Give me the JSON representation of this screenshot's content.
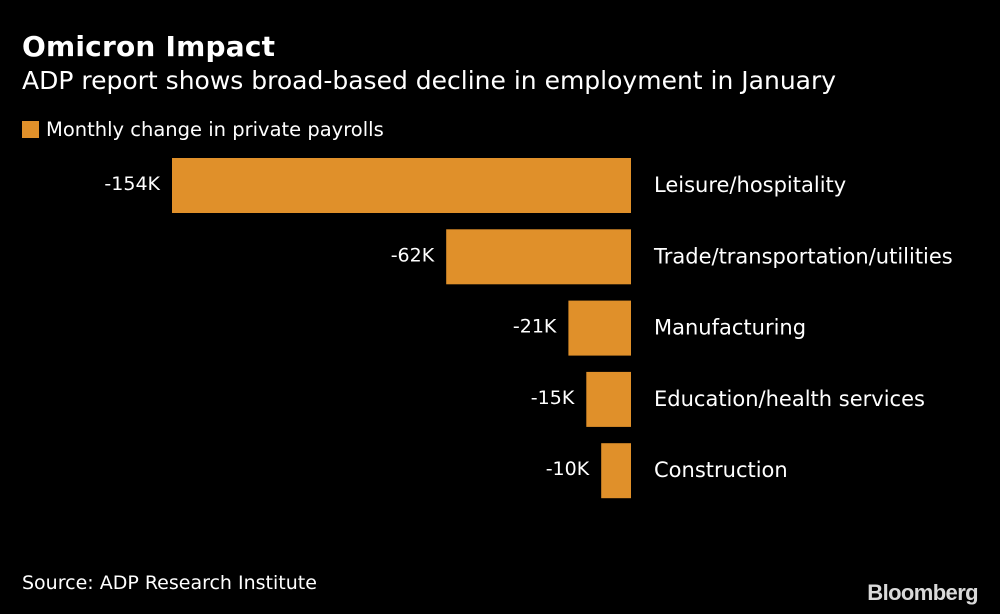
{
  "header": {
    "title": "Omicron Impact",
    "subtitle": "ADP report shows broad-based decline in employment in January"
  },
  "legend": {
    "label": "Monthly change in private payrolls"
  },
  "colors": {
    "background": "#000000",
    "bar": "#e0902a",
    "text": "#ffffff"
  },
  "chart_data": {
    "type": "bar",
    "orientation": "horizontal",
    "title": "Omicron Impact",
    "subtitle": "ADP report shows broad-based decline in employment in January",
    "categories": [
      "Leisure/hospitality",
      "Trade/transportation/utilities",
      "Manufacturing",
      "Education/health services",
      "Construction"
    ],
    "values": [
      -154,
      -62,
      -21,
      -15,
      -10
    ],
    "value_labels": [
      "-154K",
      "-62K",
      "-21K",
      "-15K",
      "-10K"
    ],
    "unit": "K",
    "series": [
      {
        "name": "Monthly change in private payrolls",
        "values": [
          -154,
          -62,
          -21,
          -15,
          -10
        ]
      }
    ],
    "xlim": [
      -154,
      0
    ],
    "grid": false,
    "legend_position": "top-left"
  },
  "footer": {
    "source": "Source: ADP Research Institute",
    "logo": "Bloomberg"
  }
}
